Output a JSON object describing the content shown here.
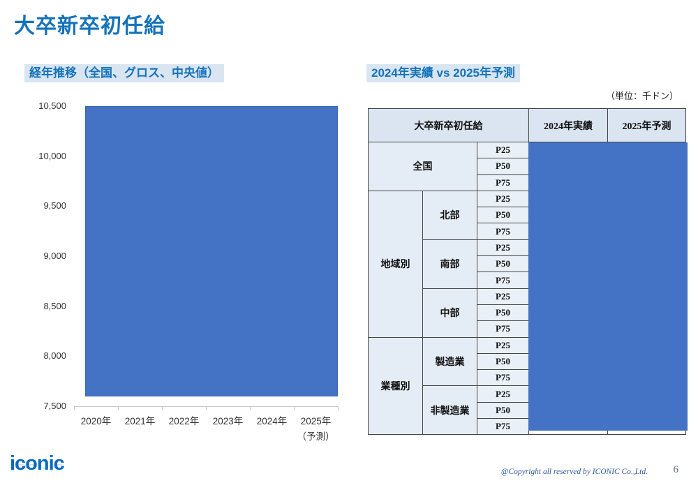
{
  "page": {
    "title": "大卒新卒初任給",
    "page_number": "6",
    "footer": {
      "logo_text": "iconic",
      "copyright": "@Copyright all reserved by ICONIC Co.,Ltd."
    }
  },
  "left_section": {
    "subtitle": "経年推移（全国、グロス、中央値）"
  },
  "right_section": {
    "subtitle": "2024年実績 vs 2025年予測",
    "unit_note": "（単位：千ドン）",
    "table": {
      "header": [
        "大卒新卒初任給",
        "2024年実績",
        "2025年予測"
      ],
      "percentiles": [
        "P25",
        "P50",
        "P75"
      ],
      "groups": [
        {
          "label": "全国",
          "subgroups": [
            {
              "label": ""
            }
          ]
        },
        {
          "label": "地域別",
          "subgroups": [
            {
              "label": "北部"
            },
            {
              "label": "南部"
            },
            {
              "label": "中部"
            }
          ]
        },
        {
          "label": "業種別",
          "subgroups": [
            {
              "label": "製造業"
            },
            {
              "label": "非製造業"
            }
          ]
        }
      ],
      "values_hidden": true
    }
  },
  "chart_data": {
    "type": "bar",
    "title": "経年推移（全国、グロス、中央値）",
    "categories": [
      "2020年",
      "2021年",
      "2022年",
      "2023年",
      "2024年",
      "2025年"
    ],
    "last_category_note": "（予測）",
    "xlabel": "",
    "ylabel": "",
    "ylim": [
      7500,
      10500
    ],
    "ytick_step": 500,
    "ytick_labels": [
      "10,500",
      "10,000",
      "9,500",
      "9,000",
      "8,500",
      "8,000",
      "7,500"
    ],
    "values_hidden": true,
    "grid": false,
    "mask_color": "#4472C4"
  },
  "colors": {
    "accent_blue": "#1573BA",
    "highlight_bg": "#D9E5F1",
    "mask_blue": "#4472C4",
    "table_header_bg": "#DAE5F1",
    "table_cell_bg": "#E4EDF6",
    "border_dark": "#454545",
    "logo_blue": "#0A6ABF"
  }
}
